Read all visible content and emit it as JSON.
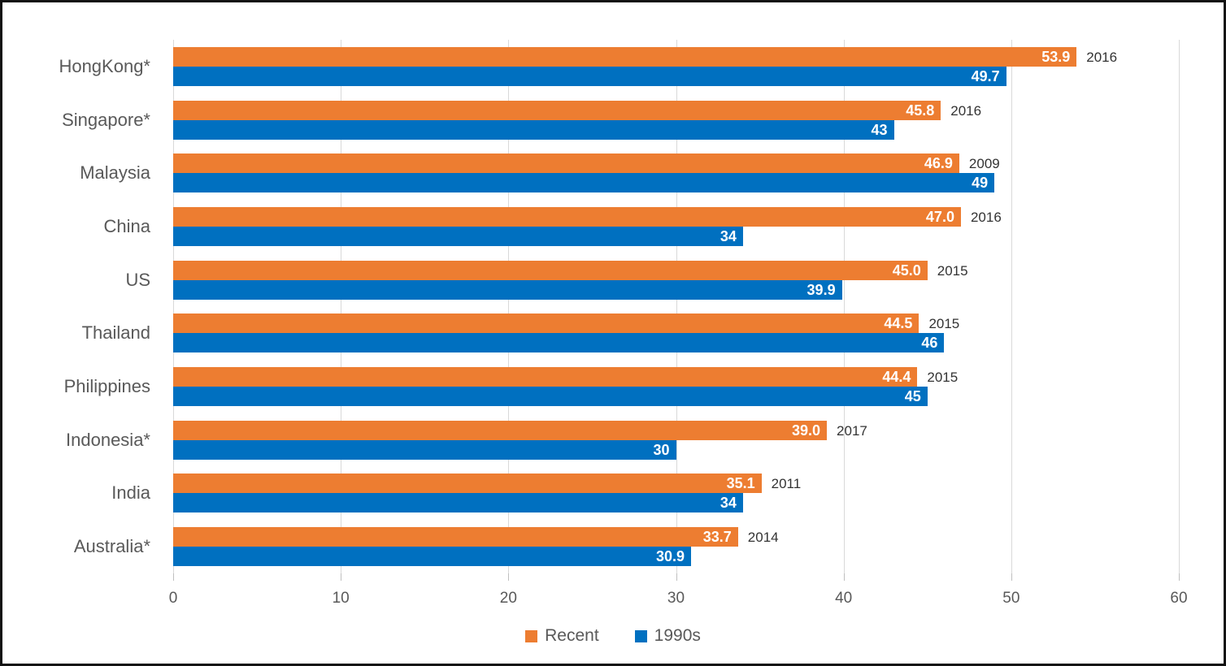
{
  "chart_data": {
    "type": "bar",
    "orientation": "horizontal",
    "title": "",
    "xlabel": "",
    "ylabel": "",
    "xlim": [
      0,
      60
    ],
    "xticks": [
      0,
      10,
      20,
      30,
      40,
      50,
      60
    ],
    "grid": true,
    "categories": [
      "HongKong*",
      "Singapore*",
      "Malaysia",
      "China",
      "US",
      "Thailand",
      "Philippines",
      "Indonesia*",
      "India",
      "Australia*"
    ],
    "series": [
      {
        "name": "Recent",
        "color": "#ED7D31",
        "values": [
          53.9,
          45.8,
          46.9,
          47.0,
          45.0,
          44.5,
          44.4,
          39.0,
          35.1,
          33.7
        ],
        "value_labels": [
          "53.9",
          "45.8",
          "46.9",
          "47.0",
          "45.0",
          "44.5",
          "44.4",
          "39.0",
          "35.1",
          "33.7"
        ],
        "year_annotations": [
          "2016",
          "2016",
          "2009",
          "2016",
          "2015",
          "2015",
          "2015",
          "2017",
          "2011",
          "2014"
        ]
      },
      {
        "name": "1990s",
        "color": "#0070C0",
        "values": [
          49.7,
          43,
          49,
          34,
          39.9,
          46,
          45,
          30,
          34,
          30.9
        ],
        "value_labels": [
          "49.7",
          "43",
          "49",
          "34",
          "39.9",
          "46",
          "45",
          "30",
          "34",
          "30.9"
        ]
      }
    ],
    "legend": {
      "position": "bottom",
      "entries": [
        {
          "label": "Recent",
          "color": "#ED7D31"
        },
        {
          "label": "1990s",
          "color": "#0070C0"
        }
      ]
    },
    "colors": {
      "gridline": "#d9d9d9",
      "tick_mark": "#bfbfbf",
      "axis_text": "#595959",
      "category_text": "#595959",
      "year_text": "#333333",
      "bar_value_text": "#ffffff",
      "frame_border": "#111111",
      "background": "#ffffff"
    }
  }
}
